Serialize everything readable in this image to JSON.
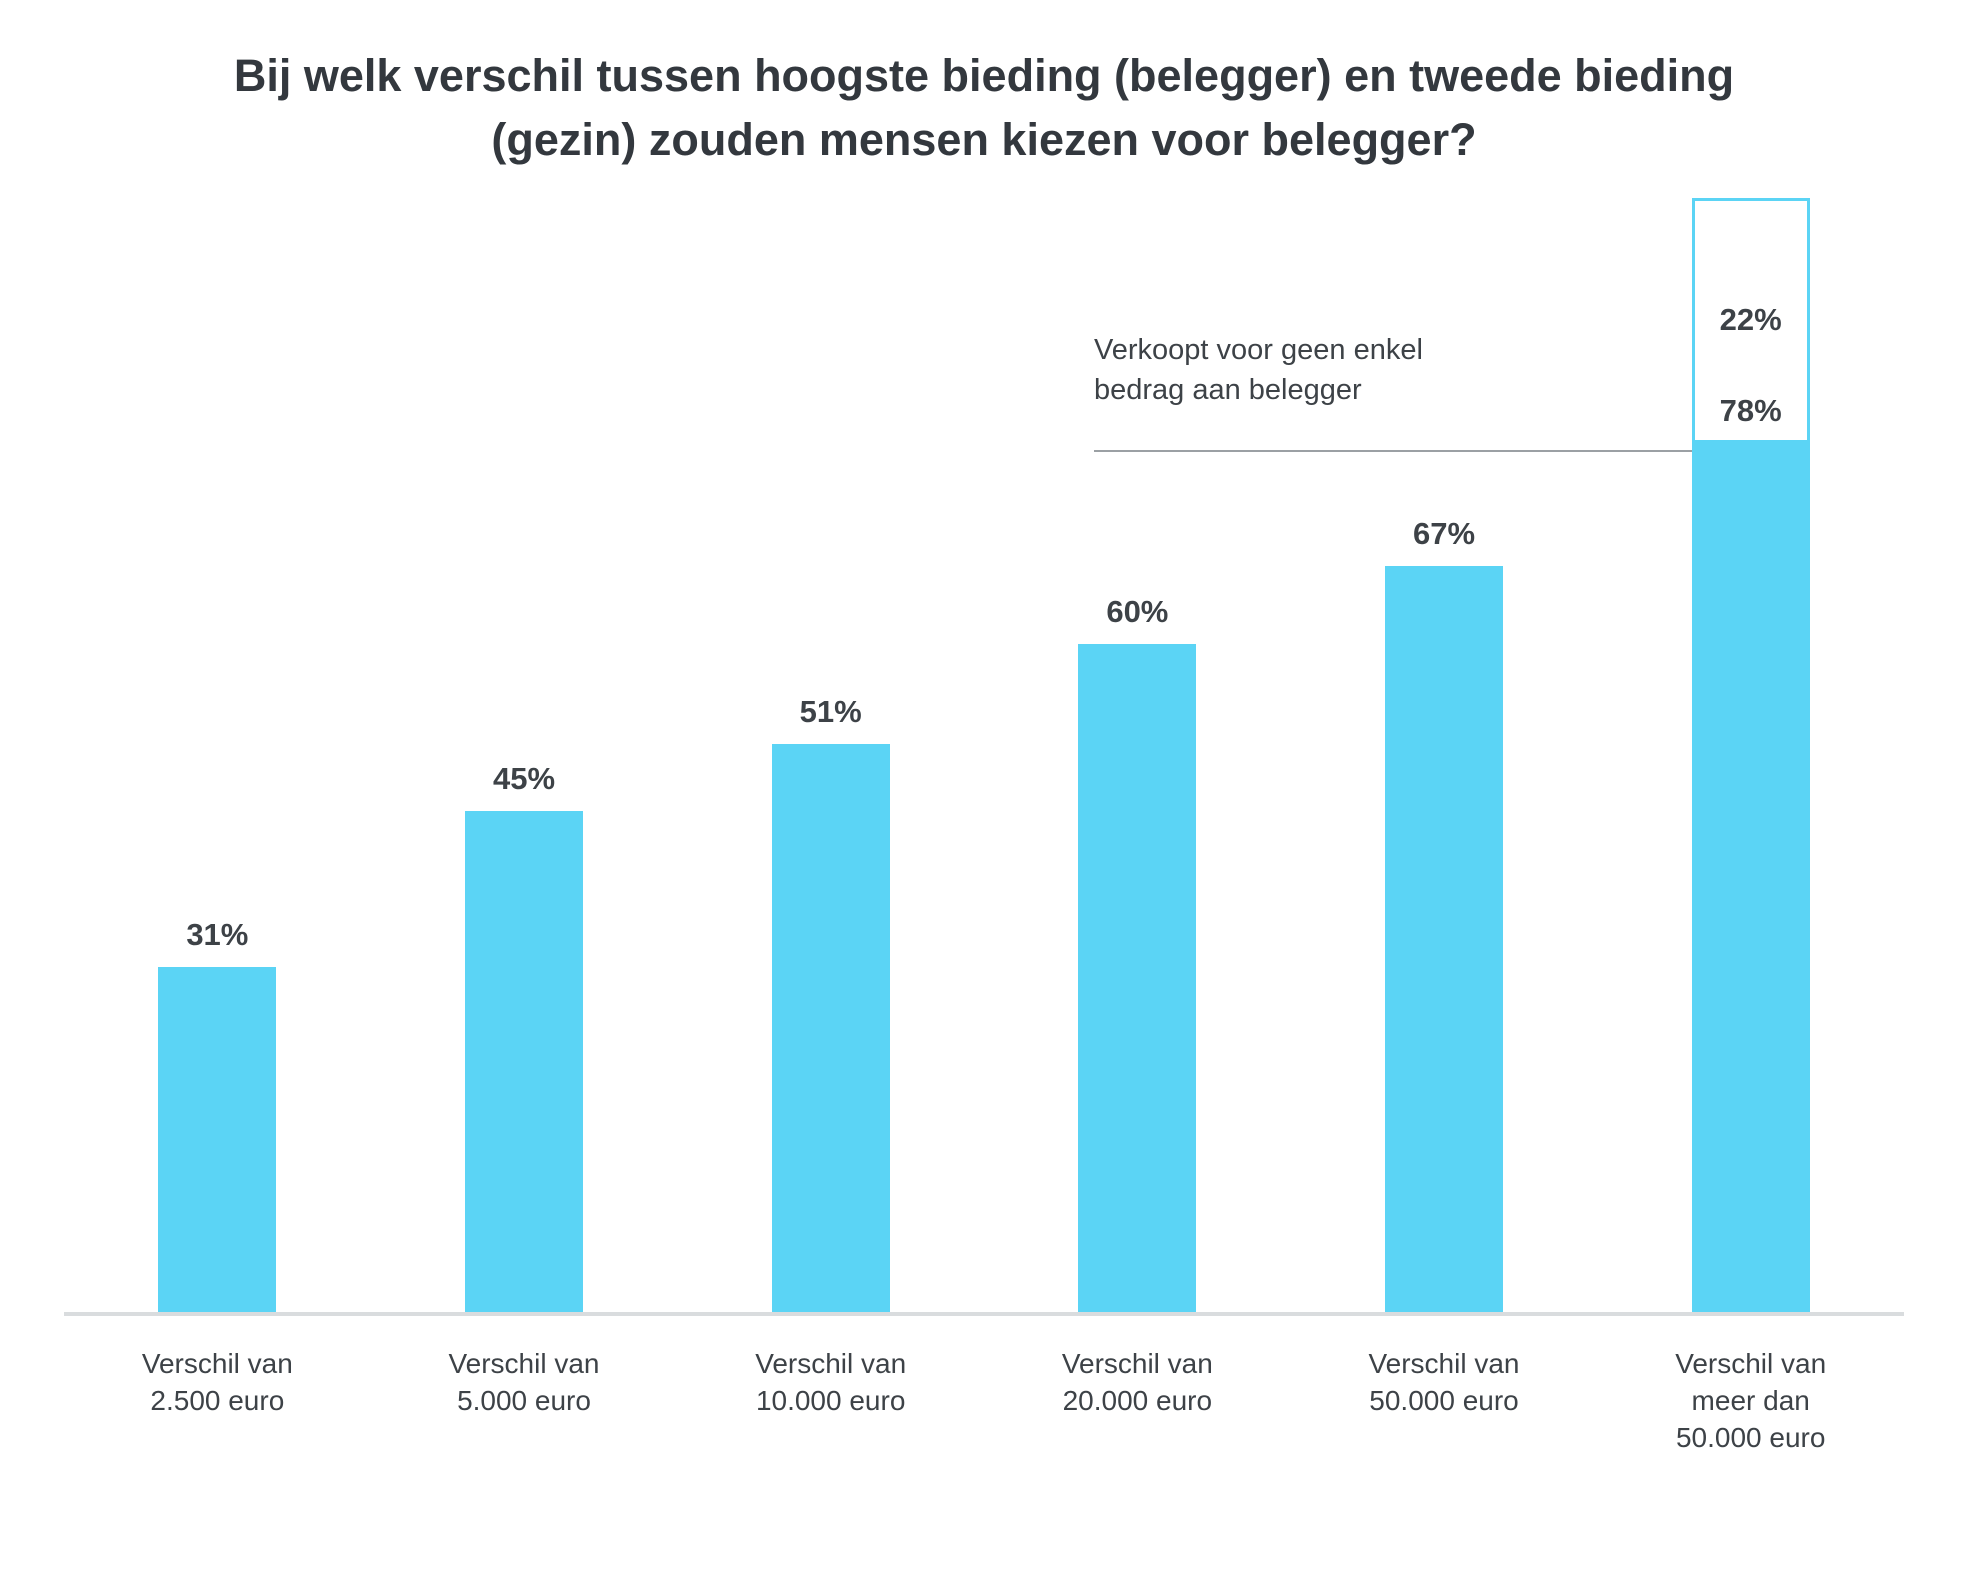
{
  "colors": {
    "bar": "#5bd4f5",
    "text": "#3d4247",
    "title": "#33383e",
    "axis": "#d9dcde",
    "annotation-line": "#9ba0a4"
  },
  "chart_data": {
    "type": "bar",
    "title": "Bij welk verschil tussen hoogste bieding (belegger) en tweede bieding (gezin) zouden mensen kiezen voor belegger?",
    "categories": [
      "Verschil van\n2.500 euro",
      "Verschil van\n5.000 euro",
      "Verschil van\n10.000 euro",
      "Verschil van\n20.000 euro",
      "Verschil van\n50.000 euro",
      "Verschil van\nmeer dan\n50.000 euro"
    ],
    "values": [
      31,
      45,
      51,
      60,
      67,
      78
    ],
    "value_labels": [
      "31%",
      "45%",
      "51%",
      "60%",
      "67%",
      "78%"
    ],
    "remainder": {
      "value": 22,
      "label": "22%",
      "annotation_text": "Verkoopt voor geen enkel\nbedrag aan belegger"
    },
    "ylim": [
      0,
      100
    ],
    "grid": false,
    "legend": false,
    "xlabel": "",
    "ylabel": ""
  }
}
